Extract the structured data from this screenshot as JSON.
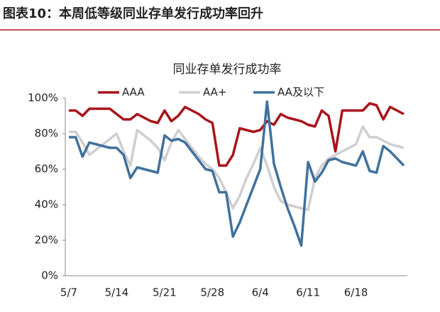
{
  "header": {
    "title": "图表10：本周低等级同业存单发行成功率回升"
  },
  "chart_data": {
    "type": "line",
    "title": "同业存单发行成功率",
    "categories": [
      "5/7",
      null,
      null,
      null,
      null,
      null,
      null,
      "5/14",
      null,
      null,
      null,
      null,
      null,
      null,
      "5/21",
      null,
      null,
      null,
      null,
      null,
      null,
      "5/28",
      null,
      null,
      null,
      null,
      null,
      null,
      "6/4",
      null,
      null,
      null,
      null,
      null,
      null,
      "6/11",
      null,
      null,
      null,
      null,
      null,
      null,
      "6/18",
      null,
      null,
      null,
      null,
      null,
      null,
      null
    ],
    "series": [
      {
        "name": "AAA",
        "color": "#a8141b",
        "values": [
          93,
          93,
          90,
          94,
          94,
          94,
          94,
          91,
          88,
          88,
          91,
          89,
          87,
          86,
          93,
          87,
          90,
          95,
          93,
          91,
          88,
          86,
          62,
          62,
          68,
          83,
          82,
          81,
          82,
          87,
          85,
          91,
          89,
          88,
          87,
          85,
          84,
          93,
          90,
          70,
          93,
          93,
          93,
          93,
          97,
          96,
          88,
          95,
          93,
          91
        ]
      },
      {
        "name": "AA+",
        "color": "#cfcfcf",
        "values": [
          81,
          81,
          75,
          68,
          71,
          74,
          77,
          80,
          70,
          62,
          82,
          79,
          76,
          72,
          65,
          75,
          82,
          77,
          72,
          67,
          63,
          60,
          55,
          47,
          38,
          45,
          55,
          63,
          72,
          62,
          50,
          42,
          40,
          39,
          38,
          37,
          55,
          62,
          66,
          68,
          70,
          72,
          74,
          84,
          78,
          78,
          76,
          74,
          73,
          72
        ]
      },
      {
        "name": "AA及以下",
        "color": "#41719c",
        "values": [
          78,
          78,
          67,
          75,
          74,
          73,
          72,
          72,
          68,
          55,
          61,
          60,
          59,
          58,
          79,
          76,
          77,
          75,
          70,
          65,
          60,
          59,
          47,
          47,
          22,
          30,
          40,
          50,
          60,
          98,
          63,
          50,
          38,
          28,
          17,
          64,
          53,
          58,
          65,
          66,
          64,
          63,
          62,
          70,
          59,
          58,
          73,
          70,
          66,
          62
        ]
      }
    ],
    "ylim": [
      0,
      100
    ],
    "yticks": [
      {
        "value": 0,
        "label": "0%"
      },
      {
        "value": 20,
        "label": "20%"
      },
      {
        "value": 40,
        "label": "40%"
      },
      {
        "value": 60,
        "label": "60%"
      },
      {
        "value": 80,
        "label": "80%"
      },
      {
        "value": 100,
        "label": "100%"
      }
    ],
    "legend": "top"
  }
}
